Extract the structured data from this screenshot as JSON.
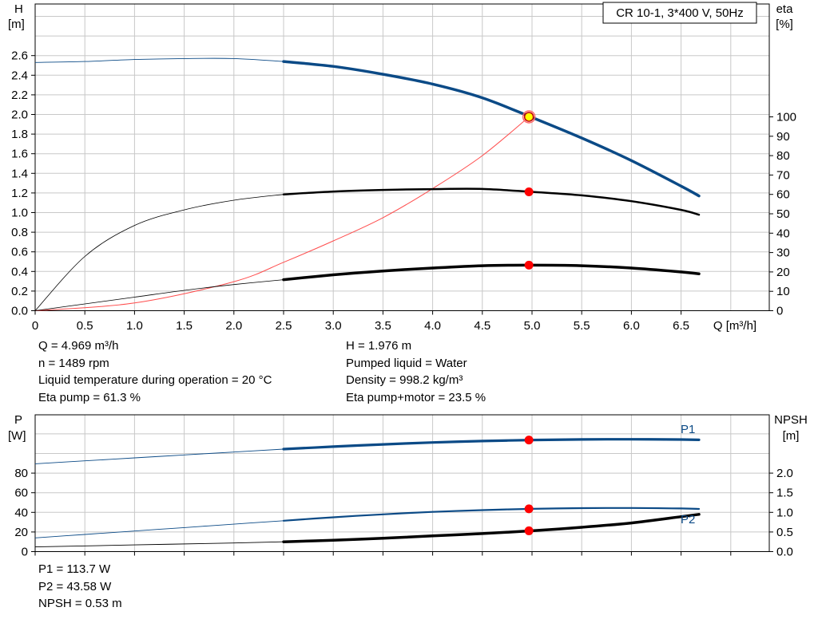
{
  "top_chart": {
    "title_box": "CR 10-1, 3*400 V, 50Hz",
    "left_axis": {
      "label": "H",
      "unit": "[m]",
      "ticks": [
        "0.0",
        "0.2",
        "0.4",
        "0.6",
        "0.8",
        "1.0",
        "1.2",
        "1.4",
        "1.6",
        "1.8",
        "2.0",
        "2.2",
        "2.4",
        "2.6"
      ]
    },
    "right_axis": {
      "label": "eta",
      "unit": "[%]",
      "ticks": [
        "0",
        "10",
        "20",
        "30",
        "40",
        "50",
        "60",
        "70",
        "80",
        "90",
        "100"
      ]
    },
    "x_axis": {
      "label": "Q [m³/h]",
      "ticks": [
        "0",
        "0.5",
        "1.0",
        "1.5",
        "2.0",
        "2.5",
        "3.0",
        "3.5",
        "4.0",
        "4.5",
        "5.0",
        "5.5",
        "6.0",
        "6.5"
      ]
    }
  },
  "duty_info_left": [
    "Q = 4.969 m³/h",
    "n = 1489 rpm",
    "Liquid temperature during operation = 20 °C",
    "Eta pump = 61.3 %"
  ],
  "duty_info_right": [
    "H = 1.976 m",
    "Pumped liquid = Water",
    "Density = 998.2 kg/m³",
    "Eta pump+motor = 23.5 %"
  ],
  "bottom_chart": {
    "left_axis": {
      "label": "P",
      "unit": "[W]",
      "ticks": [
        "0",
        "20",
        "40",
        "60",
        "80"
      ]
    },
    "right_axis": {
      "label": "NPSH",
      "unit": "[m]",
      "ticks": [
        "0.0",
        "0.5",
        "1.0",
        "1.5",
        "2.0"
      ]
    },
    "curve_labels": {
      "p1": "P1",
      "p2": "P2"
    }
  },
  "power_info": [
    "P1 = 113.7 W",
    "P2 = 43.58 W",
    "NPSH = 0.53 m"
  ],
  "colors": {
    "blue": "#0b4a86",
    "black": "#000000",
    "red": "#ff0000",
    "eta_line": "#ff4d4d",
    "duty_fill": "#ffff00",
    "grid": "#c8c8c8"
  },
  "chart_data": [
    {
      "type": "line",
      "xlabel": "Q [m³/h]",
      "ylabel": "H [m]",
      "y2label": "eta [%]",
      "xlim": [
        0,
        7.2
      ],
      "ylim": [
        0,
        2.8
      ],
      "y2lim": [
        0,
        100
      ],
      "grid": true,
      "series": [
        {
          "axis": "left",
          "x": [
            0,
            0.5,
            1.0,
            1.5,
            2.0,
            2.5,
            3.0,
            3.5,
            4.0,
            4.5,
            5.0,
            5.5,
            6.0,
            6.5,
            6.68
          ],
          "values": [
            2.53,
            2.54,
            2.56,
            2.57,
            2.57,
            2.54,
            2.49,
            2.41,
            2.31,
            2.17,
            1.97,
            1.76,
            1.53,
            1.27,
            1.17
          ],
          "solid_from": 2.5
        },
        {
          "axis": "right",
          "x": [
            0,
            0.5,
            1.0,
            1.5,
            2.0,
            2.5,
            3.0,
            3.5,
            4.0,
            4.5,
            5.0,
            5.5,
            6.0,
            6.5,
            6.68
          ],
          "values": [
            0,
            28,
            44,
            52,
            57,
            60,
            61.5,
            62.3,
            62.7,
            62.8,
            61.3,
            59.5,
            56.5,
            52,
            49.5
          ],
          "solid_from": 2.5
        },
        {
          "axis": "right",
          "x": [
            0,
            0.5,
            1.0,
            1.5,
            2.0,
            2.5,
            3.0,
            3.5,
            4.0,
            4.5,
            4.97,
            5.5,
            6.0,
            6.5,
            6.68
          ],
          "values": [
            0,
            3.5,
            7,
            10.5,
            13.5,
            16,
            18.5,
            20.5,
            22,
            23.2,
            23.5,
            23.2,
            22,
            20,
            19
          ],
          "solid_from": 2.5
        },
        {
          "axis": "right",
          "x": [
            0,
            1.0,
            2.0,
            2.5,
            3.0,
            3.5,
            4.0,
            4.5,
            4.97
          ],
          "values": [
            0,
            4,
            15,
            25,
            36,
            48,
            63,
            80,
            100
          ],
          "thin": true
        }
      ],
      "duty_point": {
        "x": 4.969,
        "h": 1.976,
        "eta_pump": 61.3,
        "eta_pump_motor": 23.5
      }
    },
    {
      "type": "line",
      "ylabel": "P [W]",
      "y2label": "NPSH [m]",
      "xlim": [
        0,
        7.2
      ],
      "ylim": [
        0,
        120
      ],
      "y2lim": [
        0,
        3.0
      ],
      "grid": true,
      "series": [
        {
          "name": "P1",
          "axis": "left",
          "x": [
            0,
            0.5,
            1.0,
            1.5,
            2.0,
            2.5,
            3.0,
            3.5,
            4.0,
            4.5,
            5.0,
            5.5,
            6.0,
            6.5,
            6.68
          ],
          "values": [
            89.5,
            92.5,
            95.5,
            98.5,
            101.5,
            104.5,
            107.0,
            109.3,
            111.2,
            112.7,
            113.7,
            114.3,
            114.5,
            114.2,
            113.9
          ],
          "solid_from": 2.5
        },
        {
          "name": "P2",
          "axis": "left",
          "x": [
            0,
            0.5,
            1.0,
            1.5,
            2.0,
            2.5,
            3.0,
            3.5,
            4.0,
            4.5,
            5.0,
            5.5,
            6.0,
            6.5,
            6.68
          ],
          "values": [
            14,
            17.5,
            21,
            24.5,
            28,
            31.5,
            35,
            38,
            40.5,
            42.3,
            43.58,
            44.3,
            44.5,
            44.0,
            43.5
          ],
          "solid_from": 2.5
        },
        {
          "axis": "right",
          "x": [
            0,
            1.0,
            2.0,
            2.5,
            3.0,
            3.5,
            4.0,
            4.5,
            5.0,
            5.5,
            6.0,
            6.5,
            6.68
          ],
          "values": [
            0.12,
            0.17,
            0.22,
            0.25,
            0.29,
            0.34,
            0.4,
            0.46,
            0.53,
            0.62,
            0.73,
            0.89,
            0.95
          ],
          "solid_from": 2.5
        }
      ],
      "duty_point": {
        "x": 4.969,
        "p1": 113.7,
        "p2": 43.58,
        "npsh": 0.53
      }
    }
  ]
}
